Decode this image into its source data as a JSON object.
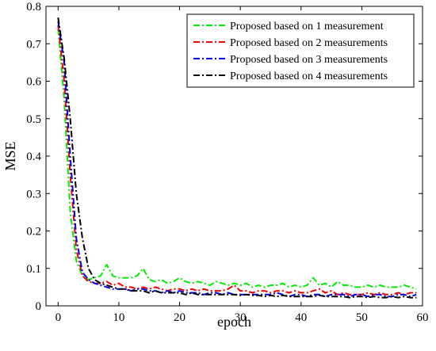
{
  "chart_data": {
    "type": "line",
    "title": "",
    "xlabel": "epoch",
    "ylabel": "MSE",
    "xlim": [
      -2,
      60
    ],
    "ylim": [
      0,
      0.8
    ],
    "xticks": [
      "0",
      "10",
      "20",
      "30",
      "40",
      "50",
      "60"
    ],
    "yticks": [
      "0",
      "0.1",
      "0.2",
      "0.3",
      "0.4",
      "0.5",
      "0.6",
      "0.7",
      "0.8"
    ],
    "grid": false,
    "legend_position": "top-right",
    "x": [
      0,
      1,
      2,
      3,
      4,
      5,
      6,
      7,
      8,
      9,
      10,
      11,
      12,
      13,
      14,
      15,
      16,
      17,
      18,
      19,
      20,
      21,
      22,
      23,
      24,
      25,
      26,
      27,
      28,
      29,
      30,
      31,
      32,
      33,
      34,
      35,
      36,
      37,
      38,
      39,
      40,
      41,
      42,
      43,
      44,
      45,
      46,
      47,
      48,
      49,
      50,
      51,
      52,
      53,
      54,
      55,
      56,
      57,
      58,
      59
    ],
    "series": [
      {
        "name": "Proposed based on 1 measurement",
        "color": "#00ee00",
        "values": [
          0.74,
          0.55,
          0.25,
          0.12,
          0.08,
          0.07,
          0.075,
          0.08,
          0.11,
          0.08,
          0.075,
          0.075,
          0.075,
          0.08,
          0.1,
          0.07,
          0.065,
          0.07,
          0.06,
          0.065,
          0.075,
          0.065,
          0.06,
          0.065,
          0.06,
          0.055,
          0.065,
          0.06,
          0.055,
          0.06,
          0.055,
          0.06,
          0.05,
          0.055,
          0.05,
          0.055,
          0.055,
          0.06,
          0.05,
          0.055,
          0.05,
          0.055,
          0.075,
          0.055,
          0.06,
          0.05,
          0.065,
          0.055,
          0.055,
          0.05,
          0.05,
          0.055,
          0.05,
          0.055,
          0.05,
          0.05,
          0.05,
          0.055,
          0.05,
          0.045
        ]
      },
      {
        "name": "Proposed based on 2 measurements",
        "color": "#ee0000",
        "values": [
          0.75,
          0.6,
          0.35,
          0.15,
          0.08,
          0.065,
          0.06,
          0.06,
          0.065,
          0.055,
          0.06,
          0.05,
          0.05,
          0.045,
          0.05,
          0.045,
          0.05,
          0.045,
          0.04,
          0.045,
          0.045,
          0.04,
          0.045,
          0.04,
          0.045,
          0.04,
          0.04,
          0.04,
          0.045,
          0.055,
          0.04,
          0.04,
          0.035,
          0.04,
          0.04,
          0.035,
          0.04,
          0.04,
          0.035,
          0.04,
          0.035,
          0.035,
          0.04,
          0.045,
          0.035,
          0.04,
          0.03,
          0.035,
          0.03,
          0.03,
          0.03,
          0.035,
          0.03,
          0.035,
          0.03,
          0.03,
          0.035,
          0.03,
          0.035,
          0.035
        ]
      },
      {
        "name": "Proposed based on 3 measurements",
        "color": "#0000ee",
        "values": [
          0.76,
          0.65,
          0.4,
          0.18,
          0.09,
          0.07,
          0.06,
          0.055,
          0.05,
          0.045,
          0.045,
          0.045,
          0.04,
          0.045,
          0.045,
          0.04,
          0.04,
          0.035,
          0.04,
          0.035,
          0.04,
          0.035,
          0.035,
          0.035,
          0.03,
          0.035,
          0.035,
          0.03,
          0.035,
          0.03,
          0.03,
          0.03,
          0.03,
          0.03,
          0.03,
          0.03,
          0.035,
          0.03,
          0.025,
          0.03,
          0.03,
          0.025,
          0.03,
          0.03,
          0.025,
          0.03,
          0.03,
          0.03,
          0.025,
          0.03,
          0.03,
          0.025,
          0.03,
          0.03,
          0.025,
          0.025,
          0.03,
          0.03,
          0.025,
          0.03
        ]
      },
      {
        "name": "Proposed based on 4 measurements",
        "color": "#000000",
        "values": [
          0.77,
          0.66,
          0.5,
          0.3,
          0.18,
          0.1,
          0.07,
          0.06,
          0.055,
          0.05,
          0.045,
          0.045,
          0.04,
          0.04,
          0.04,
          0.035,
          0.04,
          0.035,
          0.035,
          0.035,
          0.035,
          0.03,
          0.035,
          0.03,
          0.03,
          0.03,
          0.03,
          0.03,
          0.03,
          0.03,
          0.028,
          0.03,
          0.028,
          0.028,
          0.025,
          0.028,
          0.025,
          0.028,
          0.025,
          0.025,
          0.025,
          0.025,
          0.025,
          0.028,
          0.025,
          0.025,
          0.025,
          0.025,
          0.022,
          0.025,
          0.025,
          0.022,
          0.025,
          0.022,
          0.022,
          0.025,
          0.022,
          0.025,
          0.022,
          0.022
        ]
      }
    ]
  }
}
